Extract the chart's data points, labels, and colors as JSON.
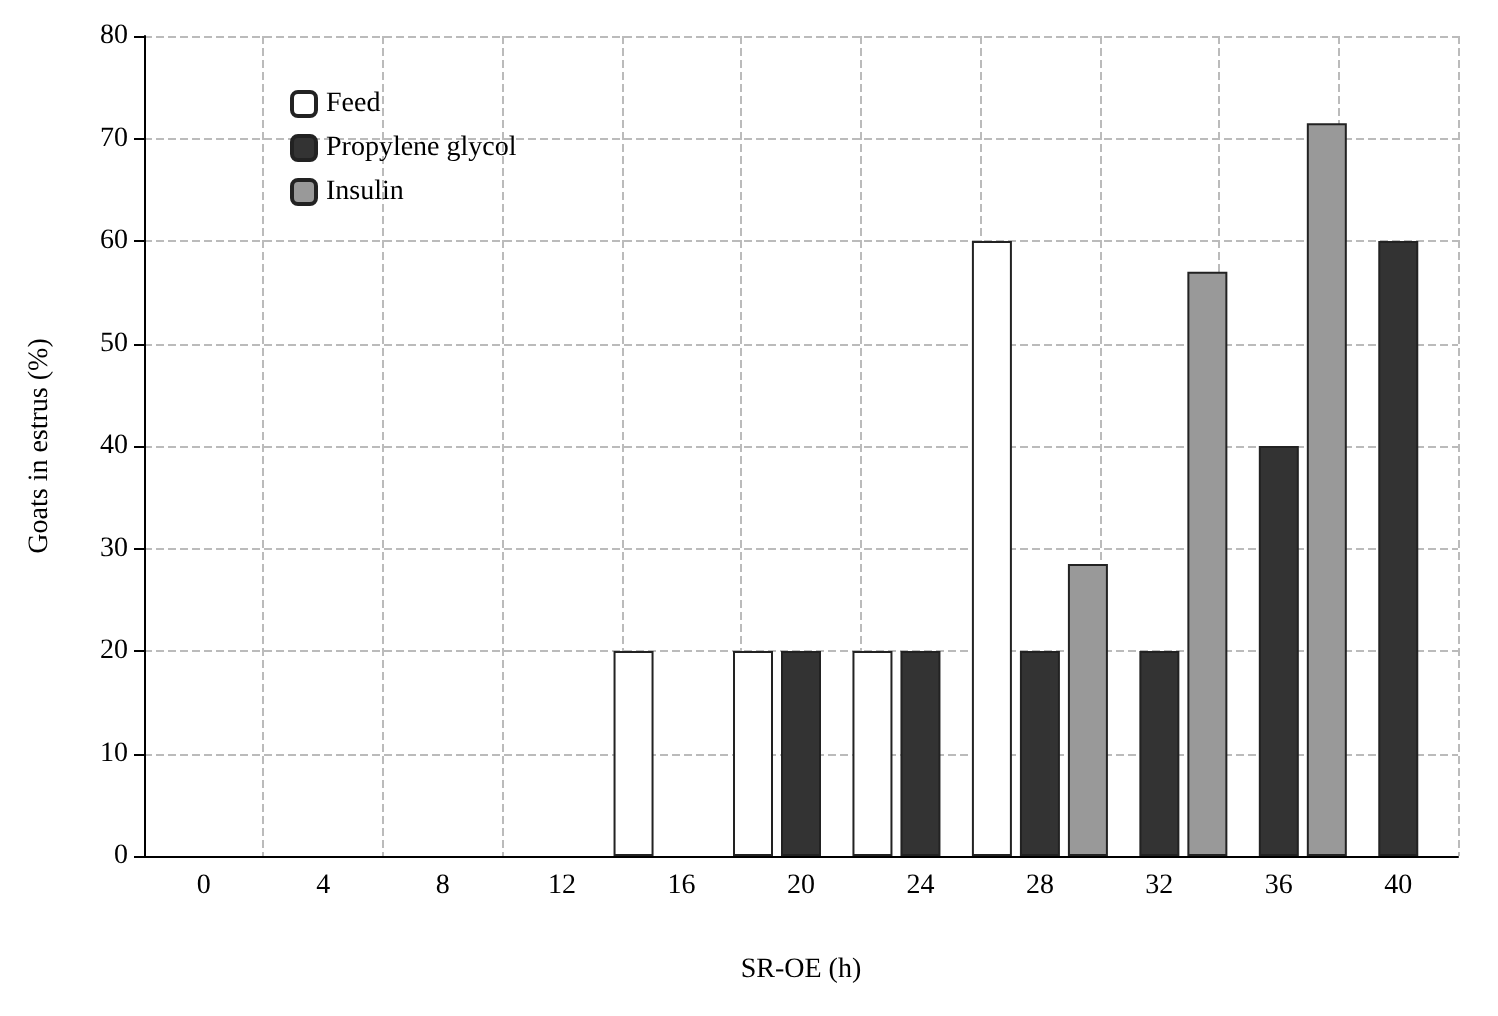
{
  "chart_data": {
    "type": "bar",
    "xlabel": "SR-OE (h)",
    "ylabel": "Goats in estrus (%)",
    "categories": [
      "0",
      "4",
      "8",
      "12",
      "16",
      "20",
      "24",
      "28",
      "32",
      "36",
      "40"
    ],
    "series": [
      {
        "name": "Feed",
        "color": "#ffffff",
        "values": [
          null,
          null,
          null,
          null,
          20,
          20,
          20,
          60,
          null,
          null,
          null
        ]
      },
      {
        "name": "Propylene glycol",
        "color": "#333333",
        "values": [
          null,
          null,
          null,
          null,
          null,
          20,
          20,
          20,
          20,
          40,
          60
        ]
      },
      {
        "name": "Insulin",
        "color": "#999999",
        "values": [
          null,
          null,
          null,
          null,
          null,
          null,
          null,
          28.5,
          57,
          71.5,
          null
        ]
      }
    ],
    "ylim": [
      0,
      80
    ],
    "yticks": [
      0,
      10,
      20,
      30,
      40,
      50,
      60,
      70,
      80
    ],
    "grid": true,
    "legend": "top left"
  }
}
